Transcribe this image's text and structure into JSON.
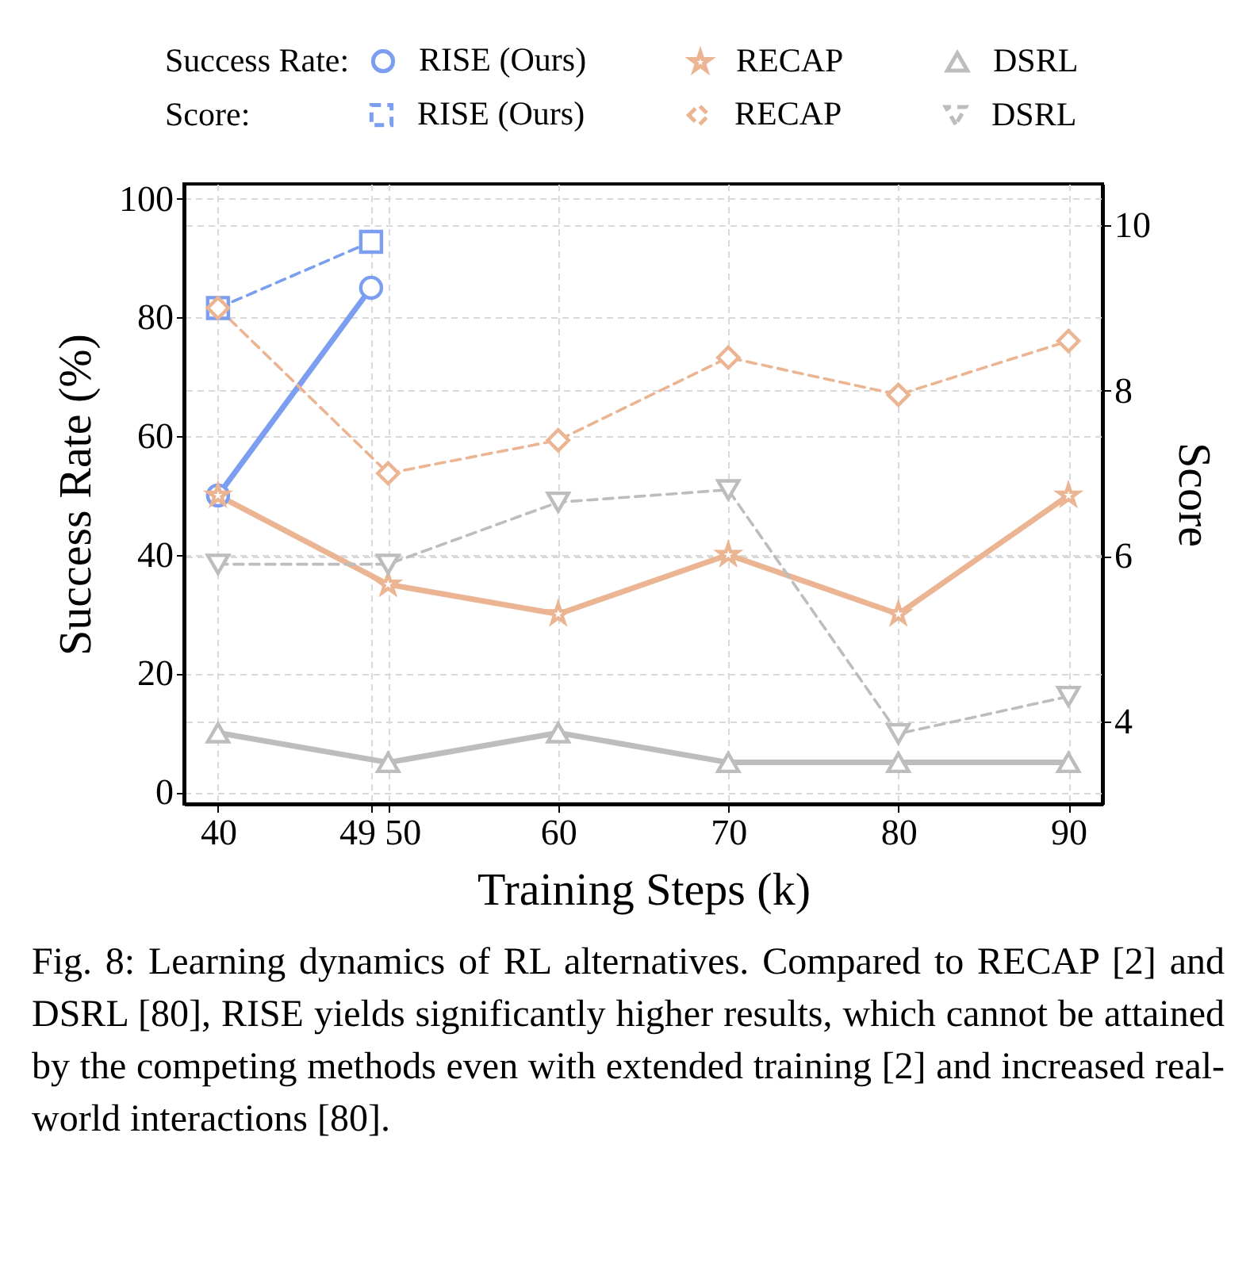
{
  "chart_data": {
    "type": "line",
    "xlabel": "Training Steps (k)",
    "ylabel": "Success Rate (%)",
    "y2label": "Score",
    "xlim": [
      38,
      92
    ],
    "xticks": [
      40,
      49,
      50,
      60,
      70,
      80,
      90
    ],
    "ylim": [
      -2,
      102.5
    ],
    "yticks": [
      0,
      20,
      40,
      60,
      80,
      100
    ],
    "y2lim": [
      3.0,
      10.5
    ],
    "y2ticks": [
      4,
      6,
      8,
      10
    ],
    "grid": true,
    "legend": "top",
    "annotations": [
      "Success Rate:",
      "Score:",
      "Fig. 8: Learning dynamics of RL alternatives. Compared to RECAP [2] and DSRL [80], RISE yields significantly higher results, which cannot be attained by the competing methods even with extended training [2] and increased real-world interactions [80]."
    ],
    "series": [
      {
        "name": "RISE (Ours)",
        "color": "#7b9ef0",
        "axis": "y",
        "marker": "circle",
        "line_style": "solid",
        "x": [
          40,
          49
        ],
        "values": [
          50,
          85
        ]
      },
      {
        "name": "RECAP",
        "color": "#ebb492",
        "axis": "y",
        "marker": "star",
        "line_style": "solid",
        "x": [
          40,
          50,
          60,
          70,
          80,
          90
        ],
        "values": [
          50,
          35,
          30,
          40,
          30,
          50
        ]
      },
      {
        "name": "DSRL",
        "color": "#bdbdbd",
        "axis": "y",
        "marker": "triangle",
        "line_style": "solid",
        "x": [
          40,
          50,
          60,
          70,
          80,
          90
        ],
        "values": [
          10,
          5,
          10,
          5,
          5,
          5
        ]
      },
      {
        "name": "RISE (Ours)",
        "color": "#7b9ef0",
        "axis": "y2",
        "marker": "square",
        "line_style": "dashed",
        "x": [
          40,
          49
        ],
        "values": [
          9.0,
          9.8
        ]
      },
      {
        "name": "RECAP",
        "color": "#ebb492",
        "axis": "y2",
        "marker": "diamond",
        "line_style": "dashed",
        "x": [
          40,
          50,
          60,
          70,
          80,
          90
        ],
        "values": [
          9.0,
          7.0,
          7.4,
          8.4,
          7.95,
          8.6
        ]
      },
      {
        "name": "DSRL",
        "color": "#bdbdbd",
        "axis": "y2",
        "marker": "triangle-down",
        "line_style": "dashed",
        "x": [
          40,
          50,
          60,
          70,
          80,
          90
        ],
        "values": [
          5.9,
          5.9,
          6.65,
          6.8,
          3.85,
          4.3
        ]
      }
    ]
  }
}
